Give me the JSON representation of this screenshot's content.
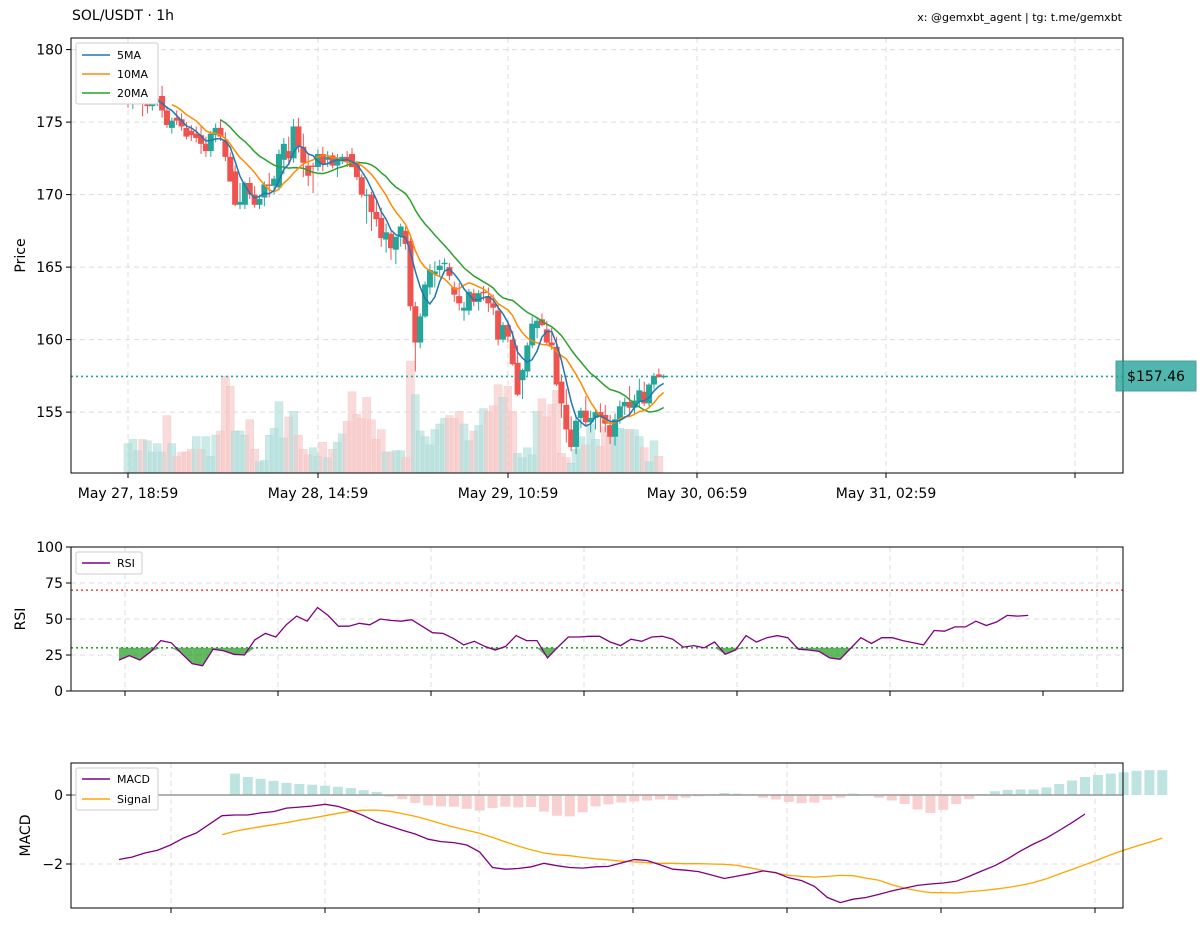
{
  "header": {
    "title": "SOL/USDT · 1h",
    "credit": "x: @gemxbt_agent | tg: t.me/gemxbt"
  },
  "colors": {
    "up": "#26a69a",
    "down": "#ef5350",
    "ma5": "#1f77b4",
    "ma10": "#ff8c00",
    "ma20": "#2ca02c",
    "rsi": "#800080",
    "macd": "#800080",
    "signal": "#ffa500",
    "price_line": "#26a69a"
  },
  "price_tag": "$157.46",
  "chart_data": [
    {
      "type": "candlestick",
      "ylabel": "Price",
      "ylim": [
        150.8,
        180.8
      ],
      "yticks": [
        155,
        160,
        165,
        170,
        175,
        180
      ],
      "xtick_labels": [
        "May 27, 18:59",
        "May 28, 14:59",
        "May 29, 10:59",
        "May 30, 06:59",
        "May 31, 02:59"
      ],
      "legend": [
        "5MA",
        "10MA",
        "20MA"
      ],
      "legend_position": "top-left",
      "grid": true,
      "current_price": 157.46,
      "ohlc_note": "[open, high, low, close]",
      "ohlc": [
        [
          178.2,
          178.8,
          176.0,
          176.6
        ],
        [
          176.6,
          177.5,
          175.9,
          177.2
        ],
        [
          177.2,
          177.6,
          176.4,
          176.8
        ],
        [
          176.6,
          177.2,
          175.4,
          176.3
        ],
        [
          176.3,
          176.8,
          175.6,
          176.1
        ],
        [
          176.1,
          177.1,
          175.8,
          176.9
        ],
        [
          176.6,
          177.3,
          176.1,
          176.4
        ],
        [
          176.8,
          177.5,
          175.3,
          175.8
        ],
        [
          175.8,
          176.1,
          174.6,
          174.8
        ],
        [
          174.6,
          175.3,
          174.2,
          175.1
        ],
        [
          175.3,
          175.8,
          174.8,
          175.1
        ],
        [
          175.2,
          175.6,
          174.4,
          174.7
        ],
        [
          174.6,
          175.0,
          173.8,
          174.0
        ],
        [
          174.4,
          174.8,
          173.7,
          174.1
        ],
        [
          174.2,
          174.7,
          173.6,
          173.9
        ],
        [
          174.1,
          174.7,
          172.8,
          173.5
        ],
        [
          173.5,
          174.0,
          172.6,
          173.0
        ],
        [
          173.0,
          174.4,
          172.6,
          174.2
        ],
        [
          174.1,
          174.9,
          173.6,
          174.6
        ],
        [
          174.6,
          175.2,
          173.7,
          174.0
        ],
        [
          173.8,
          174.3,
          172.3,
          172.6
        ],
        [
          172.6,
          172.9,
          170.9,
          170.9
        ],
        [
          171.6,
          172.0,
          169.2,
          169.3
        ],
        [
          169.3,
          170.8,
          169.0,
          169.5
        ],
        [
          169.3,
          170.9,
          169.0,
          170.8
        ],
        [
          170.8,
          171.2,
          169.7,
          170.0
        ],
        [
          170.0,
          170.6,
          169.1,
          169.3
        ],
        [
          169.3,
          170.0,
          169.0,
          169.7
        ],
        [
          169.8,
          170.9,
          169.2,
          170.7
        ],
        [
          170.7,
          171.5,
          169.8,
          170.6
        ],
        [
          170.6,
          171.3,
          170.0,
          171.1
        ],
        [
          170.5,
          173.1,
          170.3,
          172.8
        ],
        [
          172.4,
          173.9,
          171.4,
          173.5
        ],
        [
          173.0,
          174.0,
          172.1,
          172.5
        ],
        [
          172.5,
          175.2,
          172.2,
          174.7
        ],
        [
          174.7,
          175.3,
          172.9,
          173.3
        ],
        [
          173.3,
          174.2,
          171.2,
          172.2
        ],
        [
          172.0,
          172.8,
          170.6,
          171.3
        ],
        [
          172.0,
          172.2,
          170.1,
          171.9
        ],
        [
          171.9,
          173.1,
          171.6,
          172.8
        ],
        [
          172.8,
          173.3,
          171.6,
          172.1
        ],
        [
          172.4,
          173.0,
          171.9,
          172.6
        ],
        [
          172.7,
          172.9,
          171.8,
          172.0
        ],
        [
          172.0,
          172.8,
          171.2,
          172.5
        ],
        [
          172.3,
          172.8,
          172.1,
          172.6
        ],
        [
          172.6,
          173.0,
          171.9,
          172.3
        ],
        [
          172.8,
          173.2,
          171.9,
          171.9
        ],
        [
          172.1,
          172.3,
          171.0,
          171.2
        ],
        [
          171.2,
          171.4,
          169.8,
          170.0
        ],
        [
          170.0,
          170.4,
          168.0,
          170.0
        ],
        [
          170.0,
          170.2,
          167.5,
          168.8
        ],
        [
          168.8,
          169.6,
          167.8,
          168.3
        ],
        [
          168.4,
          169.1,
          166.4,
          167.0
        ],
        [
          166.9,
          168.0,
          166.0,
          167.4
        ],
        [
          167.3,
          167.5,
          165.5,
          166.3
        ],
        [
          166.2,
          167.0,
          165.2,
          167.1
        ],
        [
          167.1,
          168.0,
          166.4,
          167.8
        ],
        [
          167.5,
          167.8,
          166.2,
          166.6
        ],
        [
          166.8,
          167.0,
          162.0,
          162.3
        ],
        [
          162.3,
          162.6,
          157.8,
          159.8
        ],
        [
          159.8,
          161.8,
          159.4,
          161.6
        ],
        [
          161.6,
          164.0,
          161.5,
          163.8
        ],
        [
          163.6,
          165.2,
          163.1,
          164.8
        ],
        [
          164.5,
          165.4,
          163.6,
          164.7
        ],
        [
          164.8,
          165.5,
          164.3,
          165.1
        ],
        [
          165.2,
          165.6,
          164.8,
          165.3
        ],
        [
          165.0,
          165.3,
          164.1,
          164.4
        ],
        [
          163.6,
          164.0,
          162.6,
          163.1
        ],
        [
          163.0,
          163.9,
          162.0,
          162.5
        ],
        [
          162.0,
          162.6,
          161.3,
          162.2
        ],
        [
          162.0,
          163.5,
          161.7,
          163.3
        ],
        [
          163.2,
          163.5,
          162.3,
          162.6
        ],
        [
          162.6,
          163.4,
          162.0,
          163.2
        ],
        [
          163.3,
          163.7,
          162.7,
          163.2
        ],
        [
          163.0,
          163.6,
          161.9,
          162.5
        ],
        [
          162.5,
          163.1,
          161.7,
          162.2
        ],
        [
          162.0,
          162.5,
          159.6,
          160.0
        ],
        [
          160.0,
          161.2,
          159.8,
          161.0
        ],
        [
          161.0,
          161.3,
          159.8,
          160.2
        ],
        [
          160.0,
          160.6,
          158.2,
          158.3
        ],
        [
          158.4,
          159.6,
          156.1,
          156.2
        ],
        [
          157.2,
          158.0,
          155.9,
          157.9
        ],
        [
          157.8,
          159.8,
          157.5,
          159.6
        ],
        [
          159.6,
          161.6,
          159.4,
          161.1
        ],
        [
          160.8,
          161.5,
          160.1,
          161.3
        ],
        [
          161.4,
          161.8,
          160.9,
          161.0
        ],
        [
          160.7,
          161.3,
          159.6,
          159.8
        ],
        [
          159.8,
          160.8,
          159.3,
          159.6
        ],
        [
          159.5,
          160.2,
          156.8,
          156.9
        ],
        [
          157.1,
          157.6,
          154.6,
          155.6
        ],
        [
          155.5,
          156.6,
          152.9,
          153.8
        ],
        [
          153.8,
          154.7,
          152.3,
          152.6
        ],
        [
          152.6,
          154.8,
          152.1,
          154.4
        ],
        [
          154.6,
          155.3,
          153.9,
          155.1
        ],
        [
          155.1,
          156.1,
          154.1,
          154.3
        ],
        [
          154.3,
          155.1,
          153.6,
          154.6
        ],
        [
          154.6,
          155.2,
          153.8,
          155.0
        ],
        [
          155.0,
          155.6,
          153.6,
          154.7
        ],
        [
          154.8,
          155.5,
          153.6,
          154.2
        ],
        [
          154.1,
          154.8,
          152.8,
          153.3
        ],
        [
          153.3,
          154.9,
          152.7,
          154.5
        ],
        [
          154.5,
          155.8,
          154.2,
          155.4
        ],
        [
          155.4,
          156.0,
          154.8,
          155.7
        ],
        [
          155.7,
          156.8,
          154.7,
          155.3
        ],
        [
          155.3,
          156.2,
          154.9,
          155.8
        ],
        [
          155.7,
          157.3,
          155.3,
          156.5
        ],
        [
          156.4,
          157.1,
          155.4,
          155.6
        ],
        [
          155.6,
          157.0,
          155.4,
          156.9
        ],
        [
          156.9,
          157.7,
          156.6,
          157.5
        ],
        [
          157.6,
          158.0,
          157.4,
          157.4
        ],
        [
          157.4,
          157.6,
          157.3,
          157.5
        ]
      ],
      "volume_bars_relative": [
        0.21,
        0.24,
        0.16,
        0.24,
        0.23,
        0.15,
        0.21,
        0.15,
        0.41,
        0.21,
        0.12,
        0.15,
        0.15,
        0.17,
        0.26,
        0.17,
        0.26,
        0.12,
        0.27,
        0.3,
        0.69,
        0.62,
        0.3,
        0.3,
        0.27,
        0.38,
        0.17,
        0.08,
        0.09,
        0.27,
        0.32,
        0.51,
        0.25,
        0.4,
        0.44,
        0.27,
        0.17,
        0.13,
        0.18,
        0.12,
        0.22,
        0.11,
        0.17,
        0.22,
        0.28,
        0.37,
        0.58,
        0.42,
        0.39,
        0.54,
        0.38,
        0.24,
        0.31,
        0.15,
        0.15,
        0.16,
        0.16,
        0.11,
        0.8,
        0.56,
        0.3,
        0.26,
        0.2,
        0.31,
        0.35,
        0.39,
        0.41,
        0.39,
        0.44,
        0.35,
        0.23,
        0.3,
        0.34,
        0.46,
        0.44,
        0.48,
        0.63,
        0.54,
        0.62,
        0.44,
        0.14,
        0.11,
        0.18,
        0.13,
        0.44,
        0.53,
        0.4,
        0.49,
        0.59,
        0.14,
        0.11,
        0.07,
        0.17,
        0.26,
        0.2,
        0.35,
        0.24,
        0.19,
        0.33,
        0.27,
        0.32,
        0.32,
        0.31,
        0.31,
        0.31,
        0.26,
        0.18,
        0.08,
        0.23,
        0.12
      ],
      "volume_up_flags": [
        1,
        1,
        1,
        0,
        1,
        1,
        1,
        1,
        0,
        1,
        0,
        0,
        0,
        0,
        1,
        0,
        1,
        1,
        1,
        0,
        0,
        0,
        1,
        1,
        1,
        0,
        0,
        1,
        1,
        1,
        1,
        1,
        1,
        0,
        1,
        0,
        0,
        0,
        1,
        1,
        0,
        1,
        0,
        1,
        1,
        0,
        0,
        0,
        0,
        0,
        0,
        0,
        0,
        1,
        0,
        1,
        1,
        0,
        0,
        1,
        1,
        1,
        1,
        1,
        1,
        1,
        0,
        0,
        0,
        1,
        1,
        0,
        1,
        1,
        0,
        0,
        0,
        1,
        0,
        0,
        1,
        1,
        1,
        1,
        1,
        0,
        0,
        0,
        0,
        0,
        0,
        1,
        1,
        1,
        0,
        1,
        1,
        0,
        0,
        0,
        1,
        1,
        1,
        0,
        1,
        1,
        0,
        1,
        1,
        0
      ]
    },
    {
      "type": "line",
      "ylabel": "RSI",
      "ylim": [
        0,
        100
      ],
      "yticks": [
        0,
        25,
        50,
        75,
        100
      ],
      "legend": [
        "RSI"
      ],
      "legend_position": "top-left",
      "grid": true,
      "overbought": 70,
      "oversold": 30,
      "values": [
        21.5,
        24.5,
        21.5,
        27,
        35,
        33.5,
        26,
        19,
        17.5,
        29,
        28,
        25.5,
        25,
        35.5,
        40,
        37.5,
        46,
        52,
        48.5,
        58,
        52.5,
        45,
        45,
        47,
        46,
        50,
        49,
        48.5,
        49.5,
        45,
        40.5,
        40,
        36.5,
        32,
        34.5,
        31,
        28.5,
        31,
        38.5,
        35,
        35,
        23,
        30.5,
        37.5,
        37.5,
        38,
        38,
        34,
        31.5,
        36,
        34.5,
        37.5,
        38,
        36,
        30.5,
        31.5,
        30,
        34,
        25.5,
        28.5,
        38.5,
        34,
        37,
        38.5,
        37,
        29,
        28.5,
        27.5,
        23,
        22,
        29.5,
        37,
        33,
        37,
        37,
        35,
        33.5,
        32,
        42,
        41.5,
        44.5,
        44.5,
        48.5,
        45.5,
        48,
        52.5,
        52,
        52.5
      ]
    },
    {
      "type": "line",
      "ylabel": "MACD",
      "yticks": [
        -2,
        0
      ],
      "legend": [
        "MACD",
        "Signal"
      ],
      "legend_position": "top-left",
      "grid": true,
      "macd": [
        -1.87,
        -1.8,
        -1.68,
        -1.6,
        -1.45,
        -1.25,
        -1.1,
        -0.85,
        -0.6,
        -0.58,
        -0.58,
        -0.52,
        -0.48,
        -0.38,
        -0.35,
        -0.32,
        -0.27,
        -0.33,
        -0.45,
        -0.6,
        -0.78,
        -0.9,
        -1.02,
        -1.13,
        -1.28,
        -1.35,
        -1.38,
        -1.45,
        -1.65,
        -2.1,
        -2.15,
        -2.13,
        -2.08,
        -1.98,
        -2.05,
        -2.1,
        -2.12,
        -2.08,
        -2.07,
        -1.97,
        -1.87,
        -1.9,
        -2.02,
        -2.15,
        -2.18,
        -2.22,
        -2.32,
        -2.42,
        -2.35,
        -2.28,
        -2.2,
        -2.25,
        -2.4,
        -2.48,
        -2.65,
        -2.97,
        -3.12,
        -3.02,
        -2.97,
        -2.88,
        -2.78,
        -2.7,
        -2.62,
        -2.58,
        -2.55,
        -2.5,
        -2.36,
        -2.2,
        -2.05,
        -1.85,
        -1.62,
        -1.42,
        -1.25,
        -1.03,
        -0.8,
        -0.55
      ],
      "signal_start_index": 8,
      "signal": [
        -1.15,
        -1.05,
        -0.98,
        -0.92,
        -0.86,
        -0.8,
        -0.73,
        -0.67,
        -0.6,
        -0.53,
        -0.47,
        -0.44,
        -0.44,
        -0.47,
        -0.54,
        -0.62,
        -0.72,
        -0.83,
        -0.93,
        -1.02,
        -1.11,
        -1.23,
        -1.36,
        -1.48,
        -1.59,
        -1.68,
        -1.73,
        -1.76,
        -1.81,
        -1.85,
        -1.88,
        -1.92,
        -1.94,
        -1.96,
        -1.98,
        -1.98,
        -1.99,
        -1.99,
        -2.0,
        -2.01,
        -2.04,
        -2.11,
        -2.19,
        -2.26,
        -2.33,
        -2.36,
        -2.38,
        -2.36,
        -2.33,
        -2.34,
        -2.41,
        -2.47,
        -2.6,
        -2.7,
        -2.78,
        -2.83,
        -2.83,
        -2.84,
        -2.8,
        -2.77,
        -2.73,
        -2.68,
        -2.62,
        -2.54,
        -2.43,
        -2.29,
        -2.16,
        -2.02,
        -1.88,
        -1.73,
        -1.6,
        -1.48,
        -1.37,
        -1.25
      ],
      "hist_start_index": 9,
      "hist": [
        0.62,
        0.52,
        0.47,
        0.41,
        0.35,
        0.32,
        0.3,
        0.27,
        0.24,
        0.2,
        0.14,
        0.09,
        -0.05,
        -0.12,
        -0.23,
        -0.3,
        -0.33,
        -0.34,
        -0.4,
        -0.45,
        -0.38,
        -0.34,
        -0.36,
        -0.35,
        -0.48,
        -0.6,
        -0.62,
        -0.5,
        -0.33,
        -0.27,
        -0.22,
        -0.19,
        -0.16,
        -0.13,
        -0.14,
        -0.08,
        -0.04,
        0.02,
        0.06,
        0.04,
        0.02,
        -0.08,
        -0.13,
        -0.2,
        -0.24,
        -0.22,
        -0.14,
        -0.08,
        0.04,
        0.02,
        -0.08,
        -0.16,
        -0.26,
        -0.42,
        -0.52,
        -0.43,
        -0.26,
        -0.12,
        0.03,
        0.11,
        0.15,
        0.16,
        0.16,
        0.22,
        0.32,
        0.42,
        0.52,
        0.58,
        0.62,
        0.66,
        0.7,
        0.72,
        0.72
      ]
    }
  ]
}
